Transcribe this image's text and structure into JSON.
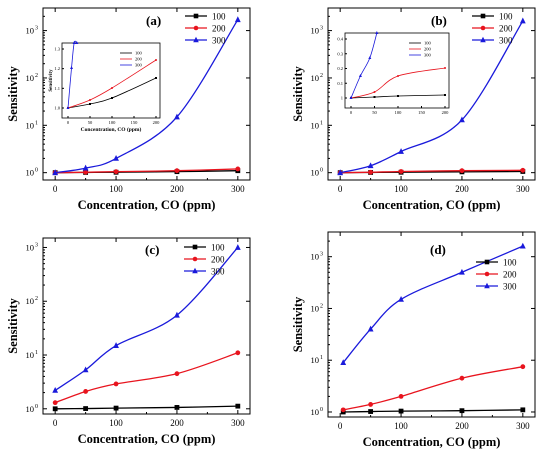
{
  "figure": {
    "panel_labels": [
      "(a)",
      "(b)",
      "(c)",
      "(d)"
    ],
    "xlabel": "Concentration, CO (ppm)",
    "ylabel": "Sensitivity",
    "legend_names": [
      "100",
      "200",
      "300"
    ],
    "x_ticks": [
      "0",
      "100",
      "200",
      "300"
    ],
    "y_ticks": [
      "10",
      "10",
      "10",
      "10"
    ],
    "y_tick_exponents": [
      "0",
      "1",
      "2",
      "3"
    ]
  },
  "chart_data": [
    {
      "type": "line",
      "panel": "(a)",
      "xlabel": "Concentration, CO (ppm)",
      "ylabel": "Sensitivity",
      "yscale": "log",
      "xlim": [
        -20,
        320
      ],
      "ylim": [
        0.7,
        3000
      ],
      "x": [
        0,
        50,
        100,
        200,
        300
      ],
      "legend_position": "top-right",
      "series": [
        {
          "name": "100",
          "color": "#000000",
          "marker": "square",
          "values": [
            1.0,
            1.01,
            1.02,
            1.05,
            1.1
          ]
        },
        {
          "name": "200",
          "color": "#e8141e",
          "marker": "circle",
          "values": [
            1.0,
            1.02,
            1.05,
            1.1,
            1.2
          ]
        },
        {
          "name": "300",
          "color": "#1a1adb",
          "marker": "triangle",
          "values": [
            1.0,
            1.25,
            2.0,
            15,
            1700
          ]
        }
      ],
      "inset": {
        "xlabel": "Concentration, CO (ppm)",
        "ylabel": "Sensitivity",
        "x_ticks": [
          "0",
          "50",
          "100",
          "150",
          "200"
        ],
        "y_ticks": [
          "1.0",
          "1.1",
          "1.2",
          "1.3"
        ],
        "legend_names": [
          "100",
          "200",
          "300"
        ]
      }
    },
    {
      "type": "line",
      "panel": "(b)",
      "xlabel": "Concentration, CO (ppm)",
      "ylabel": "Sensitivity",
      "yscale": "log",
      "xlim": [
        -20,
        320
      ],
      "ylim": [
        0.7,
        3000
      ],
      "x": [
        0,
        50,
        100,
        200,
        300
      ],
      "legend_position": "top-right",
      "series": [
        {
          "name": "100",
          "color": "#000000",
          "marker": "square",
          "values": [
            1.0,
            1.01,
            1.02,
            1.04,
            1.06
          ]
        },
        {
          "name": "200",
          "color": "#e8141e",
          "marker": "circle",
          "values": [
            1.0,
            1.02,
            1.06,
            1.1,
            1.12
          ]
        },
        {
          "name": "300",
          "color": "#1a1adb",
          "marker": "triangle",
          "values": [
            1.0,
            1.4,
            2.8,
            13,
            1600
          ]
        }
      ],
      "inset": {
        "x_ticks": [
          "0",
          "50",
          "100",
          "150",
          "200"
        ],
        "y_ticks": [
          "1",
          "0.1",
          "0.2",
          "0.3",
          "0.4"
        ],
        "legend_names": [
          "100",
          "200",
          "300"
        ]
      }
    },
    {
      "type": "line",
      "panel": "(c)",
      "xlabel": "Concentration, CO (ppm)",
      "ylabel": "Sensitivity",
      "yscale": "log",
      "xlim": [
        -20,
        320
      ],
      "ylim": [
        0.8,
        1500
      ],
      "x": [
        0,
        50,
        100,
        200,
        300
      ],
      "legend_position": "top-left",
      "series": [
        {
          "name": "100",
          "color": "#000000",
          "marker": "square",
          "values": [
            1.0,
            1.01,
            1.03,
            1.06,
            1.12
          ]
        },
        {
          "name": "200",
          "color": "#e8141e",
          "marker": "circle",
          "values": [
            1.3,
            2.1,
            2.9,
            4.5,
            11
          ]
        },
        {
          "name": "300",
          "color": "#1a1adb",
          "marker": "triangle",
          "values": [
            2.2,
            5.3,
            15,
            55,
            1000
          ]
        }
      ]
    },
    {
      "type": "line",
      "panel": "(d)",
      "xlabel": "Concentration, CO (ppm)",
      "ylabel": "Sensitivity",
      "yscale": "log",
      "xlim": [
        -20,
        320
      ],
      "ylim": [
        0.8,
        3000
      ],
      "x": [
        5,
        50,
        100,
        200,
        300
      ],
      "legend_position": "right",
      "series": [
        {
          "name": "100",
          "color": "#000000",
          "marker": "square",
          "values": [
            1.0,
            1.02,
            1.04,
            1.06,
            1.1
          ]
        },
        {
          "name": "200",
          "color": "#e8141e",
          "marker": "circle",
          "values": [
            1.1,
            1.4,
            2.0,
            4.5,
            7.5
          ]
        },
        {
          "name": "300",
          "color": "#1a1adb",
          "marker": "triangle",
          "values": [
            9,
            40,
            150,
            500,
            1600
          ]
        }
      ]
    }
  ]
}
